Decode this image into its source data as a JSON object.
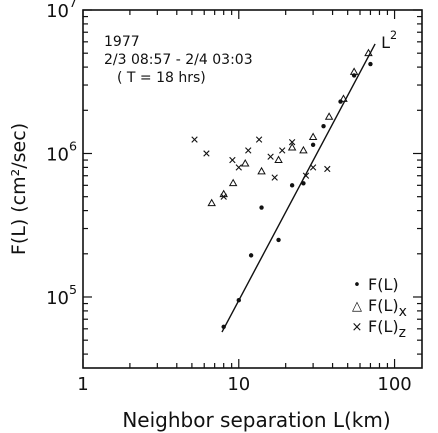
{
  "chart_data": {
    "type": "scatter",
    "title": "",
    "xlabel": "Neighbor separation L(km)",
    "ylabel": "F(L) (cm²/sec)",
    "x_scale": "log",
    "y_scale": "log",
    "xlim": [
      1,
      150
    ],
    "ylim": [
      32000,
      10000000
    ],
    "grid": false,
    "x_tick_labels": [
      "1",
      "10",
      "100"
    ],
    "y_tick_labels": [
      {
        "base": "10",
        "exp": "5"
      },
      {
        "base": "10",
        "exp": "6"
      },
      {
        "base": "10",
        "exp": "7"
      }
    ],
    "annotation_lines": [
      "1977",
      "2/3 08:57 - 2/4 03:03",
      "( T = 18 hrs)"
    ],
    "fit_line": {
      "label": {
        "base": "L",
        "exp": "2"
      },
      "points": [
        [
          7.8,
          57000
        ],
        [
          75,
          5800000
        ]
      ]
    },
    "legend": {
      "placement": "lower-right",
      "entries": [
        {
          "marker": "•",
          "name": "F(L)",
          "sub": ""
        },
        {
          "marker": "△",
          "name": "F(L)",
          "sub": "x"
        },
        {
          "marker": "×",
          "name": "F(L)",
          "sub": "z"
        }
      ]
    },
    "series": [
      {
        "marker": "dot",
        "points": [
          [
            8,
            62000
          ],
          [
            10,
            95000
          ],
          [
            12,
            195000
          ],
          [
            14,
            420000
          ],
          [
            18,
            250000
          ],
          [
            22,
            600000
          ],
          [
            26,
            620000
          ],
          [
            30,
            1150000
          ],
          [
            35,
            1550000
          ],
          [
            45,
            2300000
          ],
          [
            55,
            3500000
          ],
          [
            70,
            4200000
          ]
        ]
      },
      {
        "marker": "triangle",
        "points": [
          [
            6.7,
            450000
          ],
          [
            8,
            520000
          ],
          [
            9.2,
            620000
          ],
          [
            11,
            850000
          ],
          [
            14,
            750000
          ],
          [
            18,
            900000
          ],
          [
            22,
            1100000
          ],
          [
            26,
            1050000
          ],
          [
            30,
            1300000
          ],
          [
            38,
            1800000
          ],
          [
            47,
            2400000
          ],
          [
            55,
            3700000
          ],
          [
            68,
            5000000
          ]
        ]
      },
      {
        "marker": "cross",
        "points": [
          [
            5.2,
            1250000
          ],
          [
            6.2,
            1000000
          ],
          [
            8,
            500000
          ],
          [
            9.1,
            900000
          ],
          [
            10,
            800000
          ],
          [
            11.5,
            1050000
          ],
          [
            13.5,
            1250000
          ],
          [
            16,
            950000
          ],
          [
            17,
            680000
          ],
          [
            19,
            1050000
          ],
          [
            22,
            1200000
          ],
          [
            27,
            700000
          ],
          [
            30,
            800000
          ],
          [
            37,
            780000
          ]
        ]
      }
    ]
  }
}
